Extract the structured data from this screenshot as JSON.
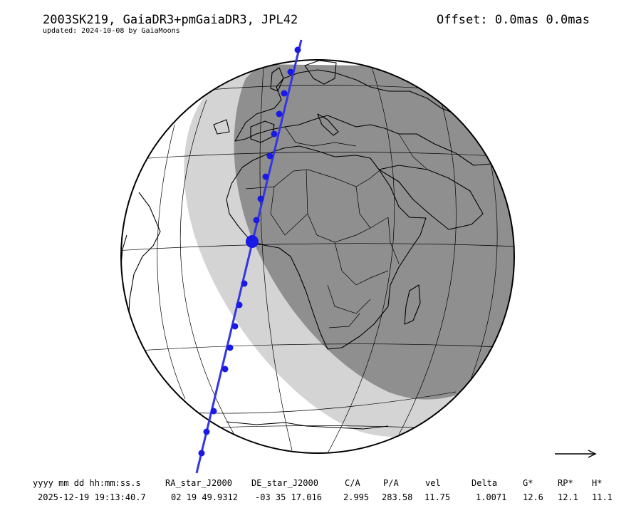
{
  "header": {
    "title": "2003SK219, GaiaDR3+pmGaiaDR3, JPL42",
    "updated": "updated: 2024-10-08 by GaiaMoons",
    "offset_label": "Offset:",
    "offset_value": "0.0mas 0.0mas"
  },
  "map": {
    "colors": {
      "globe": "#ffffff",
      "penumbra": "#d4d4d4",
      "night": "#8f8f8f",
      "coast": "#000000",
      "track": "#3636e0",
      "marker": "#1a1ae6"
    },
    "direction_icon": "arrow-right-icon"
  },
  "table": {
    "headers": [
      "yyyy mm dd hh:mm:ss.s",
      "RA_star_J2000",
      "DE_star_J2000",
      "C/A",
      "P/A",
      "vel",
      "Delta",
      "G*",
      "RP*",
      "H*"
    ],
    "row": [
      "2025-12-19 19:13:40.7",
      "02 19 49.9312",
      "-03 35 17.016",
      "2.995",
      "283.58",
      "11.75",
      "1.0071",
      "12.6",
      "12.1",
      "11.1"
    ]
  }
}
